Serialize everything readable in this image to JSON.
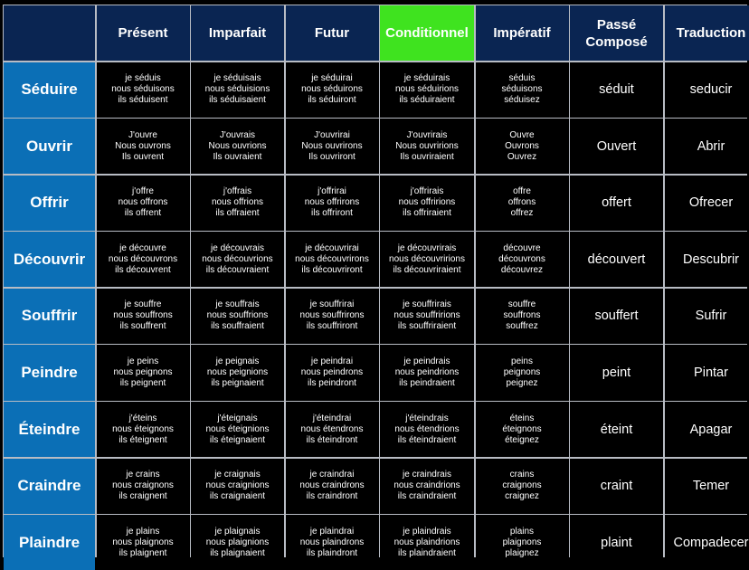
{
  "colors": {
    "header": "#0a2552",
    "highlight": "#3fe31f",
    "verb_column": "#0b6fb6",
    "body": "#000000",
    "grid": "#b8bcc4"
  },
  "headers": [
    "",
    "Présent",
    "Imparfait",
    "Futur",
    "Conditionnel",
    "Impératif",
    "Passé\nComposé",
    "Traduction"
  ],
  "highlighted_header": "Conditionnel",
  "rows": [
    {
      "verb": "Séduire",
      "present": "je séduis\nnous séduisons\nils séduisent",
      "imparfait": "je séduisais\nnous séduisions\nils séduisaient",
      "futur": "je séduirai\nnous séduirons\nils séduiront",
      "conditionnel": "je séduirais\nnous séduirions\nils séduiraient",
      "imperatif": "séduis\nséduisons\nséduisez",
      "passe_compose": "séduit",
      "traduction": "seducir"
    },
    {
      "verb": "Ouvrir",
      "present": "J'ouvre\nNous ouvrons\nIls ouvrent",
      "imparfait": "J'ouvrais\nNous ouvrions\nIls ouvraient",
      "futur": "J'ouvrirai\nNous ouvrirons\nIls ouvriront",
      "conditionnel": "J'ouvrirais\nNous ouvririons\nIls ouvriraient",
      "imperatif": "Ouvre\nOuvrons\nOuvrez",
      "passe_compose": "Ouvert",
      "traduction": "Abrir"
    },
    {
      "verb": "Offrir",
      "present": "j'offre\nnous offrons\nils offrent",
      "imparfait": "j'offrais\nnous offrions\nils offraient",
      "futur": "j'offrirai\nnous offrirons\nils offriront",
      "conditionnel": "j'offrirais\nnous offririons\nils offriraient",
      "imperatif": "offre\noffrons\noffrez",
      "passe_compose": "offert",
      "traduction": "Ofrecer"
    },
    {
      "verb": "Découvrir",
      "present": "je découvre\nnous découvrons\nils découvrent",
      "imparfait": "je découvrais\nnous découvrions\nils découvraient",
      "futur": "je découvrirai\nnous découvrirons\nils découvriront",
      "conditionnel": "je découvrirais\nnous découvririons\nils découvriraient",
      "imperatif": "découvre\ndécouvrons\ndécouvrez",
      "passe_compose": "découvert",
      "traduction": "Descubrir"
    },
    {
      "verb": "Souffrir",
      "present": "je souffre\nnous souffrons\nils souffrent",
      "imparfait": "je souffrais\nnous souffrions\nils souffraient",
      "futur": "je souffrirai\nnous souffrirons\nils souffriront",
      "conditionnel": "je souffrirais\nnous souffririons\nils souffriraient",
      "imperatif": "souffre\nsouffrons\nsouffrez",
      "passe_compose": "souffert",
      "traduction": "Sufrir"
    },
    {
      "verb": "Peindre",
      "present": "je peins\nnous peignons\nils peignent",
      "imparfait": "je peignais\nnous peignions\nils peignaient",
      "futur": "je peindrai\nnous peindrons\nils peindront",
      "conditionnel": "je peindrais\nnous peindrions\nils peindraient",
      "imperatif": "peins\npeignons\npeignez",
      "passe_compose": "peint",
      "traduction": "Pintar"
    },
    {
      "verb": "Éteindre",
      "present": "j'éteins\nnous éteignons\nils éteignent",
      "imparfait": "j'éteignais\nnous éteignions\nils éteignaient",
      "futur": "j'éteindrai\nnous étendrons\nils éteindront",
      "conditionnel": "j'éteindrais\nnous étendrions\nils éteindraient",
      "imperatif": "éteins\néteignons\néteignez",
      "passe_compose": "éteint",
      "traduction": "Apagar"
    },
    {
      "verb": "Craindre",
      "present": "je crains\nnous craignons\nils craignent",
      "imparfait": "je craignais\nnous craignions\nils craignaient",
      "futur": "je craindrai\nnous craindrons\nils craindront",
      "conditionnel": "je craindrais\nnous craindrions\nils craindraient",
      "imperatif": "crains\ncraignons\ncraignez",
      "passe_compose": "craint",
      "traduction": "Temer"
    },
    {
      "verb": "Plaindre",
      "present": "je plains\nnous plaignons\nils plaignent",
      "imparfait": "je plaignais\nnous plaignions\nils plaignaient",
      "futur": "je plaindrai\nnous plaindrons\nils plaindront",
      "conditionnel": "je plaindrais\nnous plaindrions\nils plaindraient",
      "imperatif": "plains\nplaignons\nplaignez",
      "passe_compose": "plaint",
      "traduction": "Compadecer"
    }
  ]
}
